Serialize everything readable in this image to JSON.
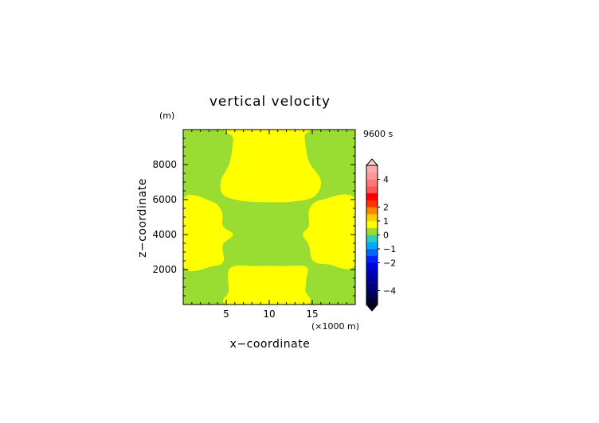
{
  "chart_data": {
    "type": "heatmap",
    "title": "vertical velocity",
    "time_label": "9600 s",
    "xlabel": "x−coordinate",
    "ylabel": "z−coordinate",
    "x_unit": "(×1000 m)",
    "y_unit": "(m)",
    "xlim": [
      0,
      20
    ],
    "ylim": [
      0,
      10000
    ],
    "x_ticks": [
      5,
      10,
      15
    ],
    "x_tick_labels": [
      "5",
      "10",
      "15"
    ],
    "y_ticks": [
      2000,
      4000,
      6000,
      8000
    ],
    "y_tick_labels": [
      "2000",
      "4000",
      "6000",
      "8000"
    ],
    "field_colors": {
      "background_level_color": "#99dd33",
      "positive_level_color": "#ffff00"
    },
    "regions": [
      {
        "value_range": "0 to 0.5",
        "description": "top central plume",
        "outline": [
          [
            5.3,
            10000
          ],
          [
            14.2,
            10000
          ],
          [
            14.1,
            9600
          ],
          [
            14.6,
            8200
          ],
          [
            16.0,
            7100
          ],
          [
            15.3,
            6200
          ],
          [
            13.0,
            5900
          ],
          [
            9.5,
            5850
          ],
          [
            6.5,
            5950
          ],
          [
            4.6,
            6300
          ],
          [
            4.4,
            7100
          ],
          [
            5.4,
            8100
          ],
          [
            5.8,
            9500
          ]
        ]
      },
      {
        "value_range": "0 to 0.5",
        "description": "left middle lobe",
        "outline": [
          [
            0,
            6000
          ],
          [
            3.3,
            5900
          ],
          [
            4.5,
            5300
          ],
          [
            4.6,
            4500
          ],
          [
            5.8,
            4000
          ],
          [
            4.6,
            3400
          ],
          [
            4.7,
            2500
          ],
          [
            3.5,
            2200
          ],
          [
            0,
            2200
          ]
        ]
      },
      {
        "value_range": "0 to 0.5",
        "description": "right middle lobe",
        "outline": [
          [
            20,
            6000
          ],
          [
            16.2,
            6000
          ],
          [
            14.7,
            5500
          ],
          [
            14.6,
            4500
          ],
          [
            13.9,
            4000
          ],
          [
            14.6,
            3400
          ],
          [
            15.1,
            2500
          ],
          [
            16.8,
            2300
          ],
          [
            20,
            2300
          ]
        ]
      },
      {
        "value_range": "0 to 0.5",
        "description": "bottom central plume",
        "outline": [
          [
            5.5,
            2100
          ],
          [
            8.5,
            2200
          ],
          [
            11.5,
            2200
          ],
          [
            14.3,
            2150
          ],
          [
            14.3,
            1400
          ],
          [
            14.2,
            800
          ],
          [
            14.2,
            0
          ],
          [
            5.3,
            0
          ],
          [
            5.3,
            800
          ]
        ]
      }
    ],
    "colorbar": {
      "levels": [
        {
          "lo": -5,
          "hi": -4.5,
          "color": "#000033"
        },
        {
          "lo": -4.5,
          "hi": -4,
          "color": "#000055"
        },
        {
          "lo": -4,
          "hi": -3.5,
          "color": "#000077"
        },
        {
          "lo": -3.5,
          "hi": -3,
          "color": "#000099"
        },
        {
          "lo": -3,
          "hi": -2.5,
          "color": "#0000bb"
        },
        {
          "lo": -2.5,
          "hi": -2,
          "color": "#0000dd"
        },
        {
          "lo": -2,
          "hi": -1.5,
          "color": "#0022ff"
        },
        {
          "lo": -1.5,
          "hi": -1,
          "color": "#0066ff"
        },
        {
          "lo": -1,
          "hi": -0.5,
          "color": "#00aaff"
        },
        {
          "lo": -0.5,
          "hi": 0,
          "color": "#33ccbb"
        },
        {
          "lo": 0,
          "hi": 0.5,
          "color": "#99dd33"
        },
        {
          "lo": 0.5,
          "hi": 1,
          "color": "#ffff00"
        },
        {
          "lo": 1,
          "hi": 1.5,
          "color": "#ffcc00"
        },
        {
          "lo": 1.5,
          "hi": 2,
          "color": "#ff8800"
        },
        {
          "lo": 2,
          "hi": 2.5,
          "color": "#ff3300"
        },
        {
          "lo": 2.5,
          "hi": 3,
          "color": "#ff0000"
        },
        {
          "lo": 3,
          "hi": 3.5,
          "color": "#ff5555"
        },
        {
          "lo": 3.5,
          "hi": 4,
          "color": "#ff7777"
        },
        {
          "lo": 4,
          "hi": 4.5,
          "color": "#ff9999"
        },
        {
          "lo": 4.5,
          "hi": 5,
          "color": "#ffaaaa"
        }
      ],
      "under_color": "#000022",
      "over_color": "#ffcccc",
      "tick_values": [
        4,
        2,
        1,
        0,
        -1,
        -2,
        -4
      ],
      "tick_labels": [
        "4",
        "2",
        "1",
        "0",
        "−1",
        "−2",
        "−4"
      ]
    }
  }
}
